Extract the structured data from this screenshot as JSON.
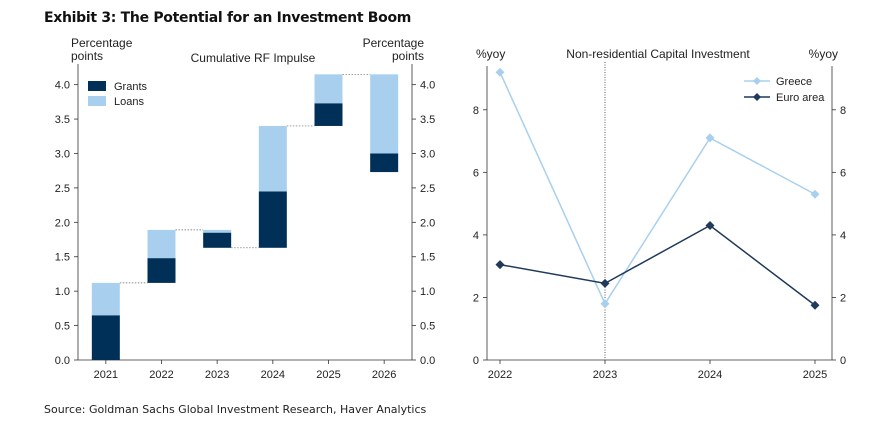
{
  "exhibit_title": "Exhibit 3: The Potential for an Investment Boom",
  "source": "Source: Goldman Sachs Global Investment Research, Haver Analytics",
  "colors": {
    "grants": "#003057",
    "loans": "#a8d0ee",
    "greece": "#a8d0ee",
    "euro_area": "#1f3a5a"
  },
  "chart_data": [
    {
      "type": "bar",
      "subtype": "waterfall-stacked",
      "title": "Cumulative RF Impulse",
      "ylabel_left": "Percentage\npoints",
      "ylabel_right": "Percentage\npoints",
      "categories": [
        "2021",
        "2022",
        "2023",
        "2024",
        "2025",
        "2026"
      ],
      "ylim": [
        0,
        4.3
      ],
      "yticks": [
        "0.0",
        "0.5",
        "1.0",
        "1.5",
        "2.0",
        "2.5",
        "3.0",
        "3.5",
        "4.0"
      ],
      "segments": [
        {
          "category": "2021",
          "series": "Grants",
          "from": 0.0,
          "to": 0.65
        },
        {
          "category": "2021",
          "series": "Loans",
          "from": 0.65,
          "to": 1.12
        },
        {
          "category": "2022",
          "series": "Grants",
          "from": 1.12,
          "to": 1.48
        },
        {
          "category": "2022",
          "series": "Loans",
          "from": 1.48,
          "to": 1.89
        },
        {
          "category": "2023",
          "series": "Grants",
          "from": 1.63,
          "to": 1.85
        },
        {
          "category": "2023",
          "series": "Loans",
          "from": 1.85,
          "to": 1.89
        },
        {
          "category": "2024",
          "series": "Grants",
          "from": 1.63,
          "to": 2.45
        },
        {
          "category": "2024",
          "series": "Loans",
          "from": 2.45,
          "to": 3.4
        },
        {
          "category": "2025",
          "series": "Grants",
          "from": 3.4,
          "to": 3.73
        },
        {
          "category": "2025",
          "series": "Loans",
          "from": 3.73,
          "to": 4.15
        },
        {
          "category": "2026",
          "series": "Grants",
          "from": 2.73,
          "to": 3.0
        },
        {
          "category": "2026",
          "series": "Loans",
          "from": 3.0,
          "to": 4.15
        }
      ],
      "connectors": [
        {
          "from": "2021",
          "to": "2022",
          "y": 1.12
        },
        {
          "from": "2022",
          "to": "2023",
          "y": 1.89
        },
        {
          "from": "2023",
          "to": "2024",
          "y": 1.63
        },
        {
          "from": "2024",
          "to": "2025",
          "y": 3.4
        },
        {
          "from": "2025",
          "to": "2026",
          "y": 4.15
        }
      ],
      "legend": [
        "Grants",
        "Loans"
      ],
      "legend_position": "top-left"
    },
    {
      "type": "line",
      "title": "Non-residential Capital Investment",
      "ylabel_left": "%yoy",
      "ylabel_right": "%yoy",
      "x": [
        "2022",
        "2023",
        "2024",
        "2025"
      ],
      "ylim": [
        0,
        9.4
      ],
      "yticks": [
        0,
        2,
        4,
        6,
        8
      ],
      "vline_at": "2023",
      "series": [
        {
          "name": "Greece",
          "values": [
            9.2,
            1.8,
            7.1,
            5.3
          ]
        },
        {
          "name": "Euro area",
          "values": [
            3.05,
            2.45,
            4.3,
            1.75
          ]
        }
      ],
      "legend_position": "top-right"
    }
  ]
}
